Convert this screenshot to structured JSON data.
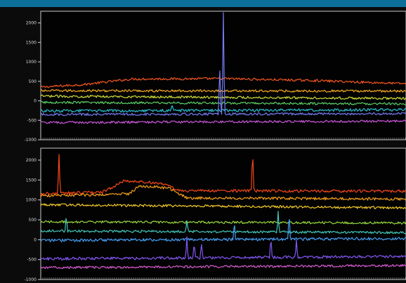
{
  "chart_data": [
    {
      "type": "line",
      "panel": "top",
      "y_ticks": [
        2000,
        1500,
        1000,
        500,
        0,
        -500,
        -1000
      ],
      "y_tick_labels": [
        "2000",
        "1500",
        "1000",
        "500",
        "0",
        "-500",
        "-1000"
      ],
      "ylim": [
        -1000,
        2300
      ],
      "x": [
        0,
        100
      ],
      "grid": false,
      "series": [
        {
          "color": "#ff5a1f",
          "values": [
            [
              0,
              350
            ],
            [
              12,
              420
            ],
            [
              25,
              560
            ],
            [
              50,
              570
            ],
            [
              75,
              520
            ],
            [
              100,
              440
            ]
          ],
          "noise": 30
        },
        {
          "color": "#ffb020",
          "values": [
            [
              0,
              260
            ],
            [
              100,
              250
            ]
          ],
          "noise": 30
        },
        {
          "color": "#d8e838",
          "values": [
            [
              0,
              120
            ],
            [
              100,
              60
            ]
          ],
          "noise": 30
        },
        {
          "color": "#5fd86a",
          "values": [
            [
              0,
              -40
            ],
            [
              100,
              -80
            ]
          ],
          "noise": 30
        },
        {
          "color": "#28c8d8",
          "values": [
            [
              0,
              -260
            ],
            [
              100,
              -230
            ]
          ],
          "noise": 35,
          "spikes": [
            [
              36,
              140
            ],
            [
              39,
              60
            ]
          ]
        },
        {
          "color": "#7a82ff",
          "values": [
            [
              0,
              -350
            ],
            [
              100,
              -330
            ]
          ],
          "noise": 30,
          "spikes": [
            [
              50,
              2600
            ],
            [
              49,
              1300
            ]
          ]
        },
        {
          "color": "#d25ae0",
          "values": [
            [
              0,
              -560
            ],
            [
              100,
              -520
            ]
          ],
          "noise": 30
        }
      ]
    },
    {
      "type": "line",
      "panel": "bottom",
      "y_ticks": [
        2000,
        1500,
        1000,
        500,
        0,
        -500,
        -1000
      ],
      "y_tick_labels": [
        "2000",
        "1500",
        "1000",
        "500",
        "0",
        "-500",
        "-1000"
      ],
      "ylim": [
        -1000,
        2300
      ],
      "x": [
        0,
        100
      ],
      "grid": false,
      "series": [
        {
          "color": "#ff4a18",
          "values": [
            [
              0,
              1150
            ],
            [
              17,
              1200
            ],
            [
              23,
              1480
            ],
            [
              33,
              1420
            ],
            [
              38,
              1230
            ],
            [
              100,
              1220
            ]
          ],
          "noise": 35,
          "spikes": [
            [
              5,
              1000
            ],
            [
              58,
              1100
            ]
          ]
        },
        {
          "color": "#ffa51a",
          "values": [
            [
              0,
              1100
            ],
            [
              24,
              1150
            ],
            [
              27,
              1350
            ],
            [
              35,
              1300
            ],
            [
              40,
              1050
            ],
            [
              100,
              1020
            ]
          ],
          "noise": 35
        },
        {
          "color": "#ffd42a",
          "values": [
            [
              0,
              880
            ],
            [
              100,
              800
            ]
          ],
          "noise": 30
        },
        {
          "color": "#9fe040",
          "values": [
            [
              0,
              450
            ],
            [
              100,
              420
            ]
          ],
          "noise": 30
        },
        {
          "color": "#46d0c0",
          "values": [
            [
              0,
              220
            ],
            [
              100,
              180
            ]
          ],
          "noise": 30,
          "spikes": [
            [
              7,
              400
            ],
            [
              40,
              300
            ],
            [
              65,
              500
            ]
          ]
        },
        {
          "color": "#4aa8ff",
          "values": [
            [
              0,
              -20
            ],
            [
              100,
              30
            ]
          ],
          "noise": 35,
          "spikes": [
            [
              53,
              500
            ],
            [
              68,
              700
            ]
          ]
        },
        {
          "color": "#8a5cff",
          "values": [
            [
              0,
              -480
            ],
            [
              100,
              -420
            ]
          ],
          "noise": 35,
          "spikes": [
            [
              40,
              500
            ],
            [
              42,
              400
            ],
            [
              44,
              380
            ],
            [
              63,
              500
            ],
            [
              70,
              400
            ]
          ]
        },
        {
          "color": "#e060d8",
          "values": [
            [
              0,
              -700
            ],
            [
              100,
              -650
            ]
          ],
          "noise": 30
        }
      ]
    }
  ]
}
